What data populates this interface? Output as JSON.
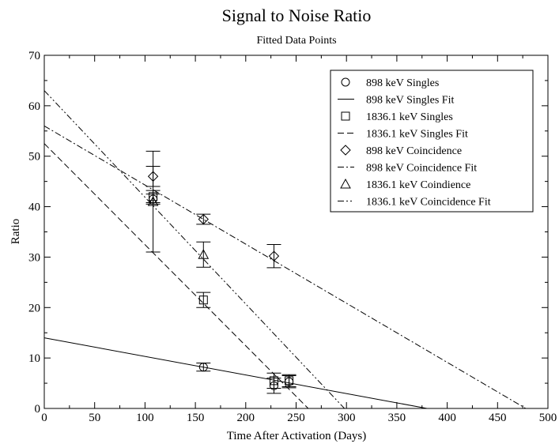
{
  "chart_data": {
    "type": "scatter",
    "title": "Signal to Noise Ratio",
    "subtitle": "Fitted Data Points",
    "xlabel": "Time After Activation (Days)",
    "ylabel": "Ratio",
    "xlim": [
      0,
      500
    ],
    "ylim": [
      0,
      70
    ],
    "x_ticks": [
      0,
      50,
      100,
      150,
      200,
      250,
      300,
      350,
      400,
      450,
      500
    ],
    "y_ticks": [
      0,
      10,
      20,
      30,
      40,
      50,
      60,
      70
    ],
    "grid": false,
    "legend_position": "top-right",
    "series": [
      {
        "name": "898 keV Singles",
        "kind": "points",
        "marker": "circle",
        "points": [
          {
            "x": 108,
            "y": 41.5,
            "err": 1.0
          },
          {
            "x": 158,
            "y": 8.2,
            "err": 0.8
          },
          {
            "x": 228,
            "y": 4.5,
            "err": 1.5
          },
          {
            "x": 243,
            "y": 5.3,
            "err": 1.2
          }
        ]
      },
      {
        "name": "898 keV Singles Fit",
        "kind": "line",
        "dash": "solid",
        "x": [
          0,
          380
        ],
        "y": [
          14,
          0
        ]
      },
      {
        "name": "1836.1 keV Singles",
        "kind": "points",
        "marker": "square",
        "points": [
          {
            "x": 108,
            "y": 42,
            "err": 1.2
          },
          {
            "x": 158,
            "y": 21.5,
            "err": 1.5
          },
          {
            "x": 228,
            "y": 5.5,
            "err": 1.5
          },
          {
            "x": 243,
            "y": 5.5,
            "err": 1.2
          }
        ]
      },
      {
        "name": "1836.1 keV Singles Fit",
        "kind": "line",
        "dash": "dashed",
        "x": [
          0,
          262
        ],
        "y": [
          52.5,
          0
        ]
      },
      {
        "name": "898 keV Coincidence",
        "kind": "points",
        "marker": "diamond",
        "points": [
          {
            "x": 108,
            "y": 46,
            "err": 2.0
          },
          {
            "x": 158,
            "y": 37.5,
            "err": 1.0
          },
          {
            "x": 228,
            "y": 30.2,
            "err": 2.3
          }
        ]
      },
      {
        "name": "898 keV Coincidence Fit",
        "kind": "line",
        "dash": "dash-dot",
        "x": [
          0,
          478
        ],
        "y": [
          56,
          0
        ]
      },
      {
        "name": "1836.1 keV Coindience",
        "kind": "points",
        "marker": "triangle",
        "points": [
          {
            "x": 108,
            "y": 41,
            "err": 10.0
          },
          {
            "x": 158,
            "y": 30.5,
            "err": 2.5
          }
        ]
      },
      {
        "name": "1836.1 keV Coincidence Fit",
        "kind": "line",
        "dash": "dash-dot-dot",
        "x": [
          0,
          298
        ],
        "y": [
          63,
          0
        ]
      }
    ]
  }
}
